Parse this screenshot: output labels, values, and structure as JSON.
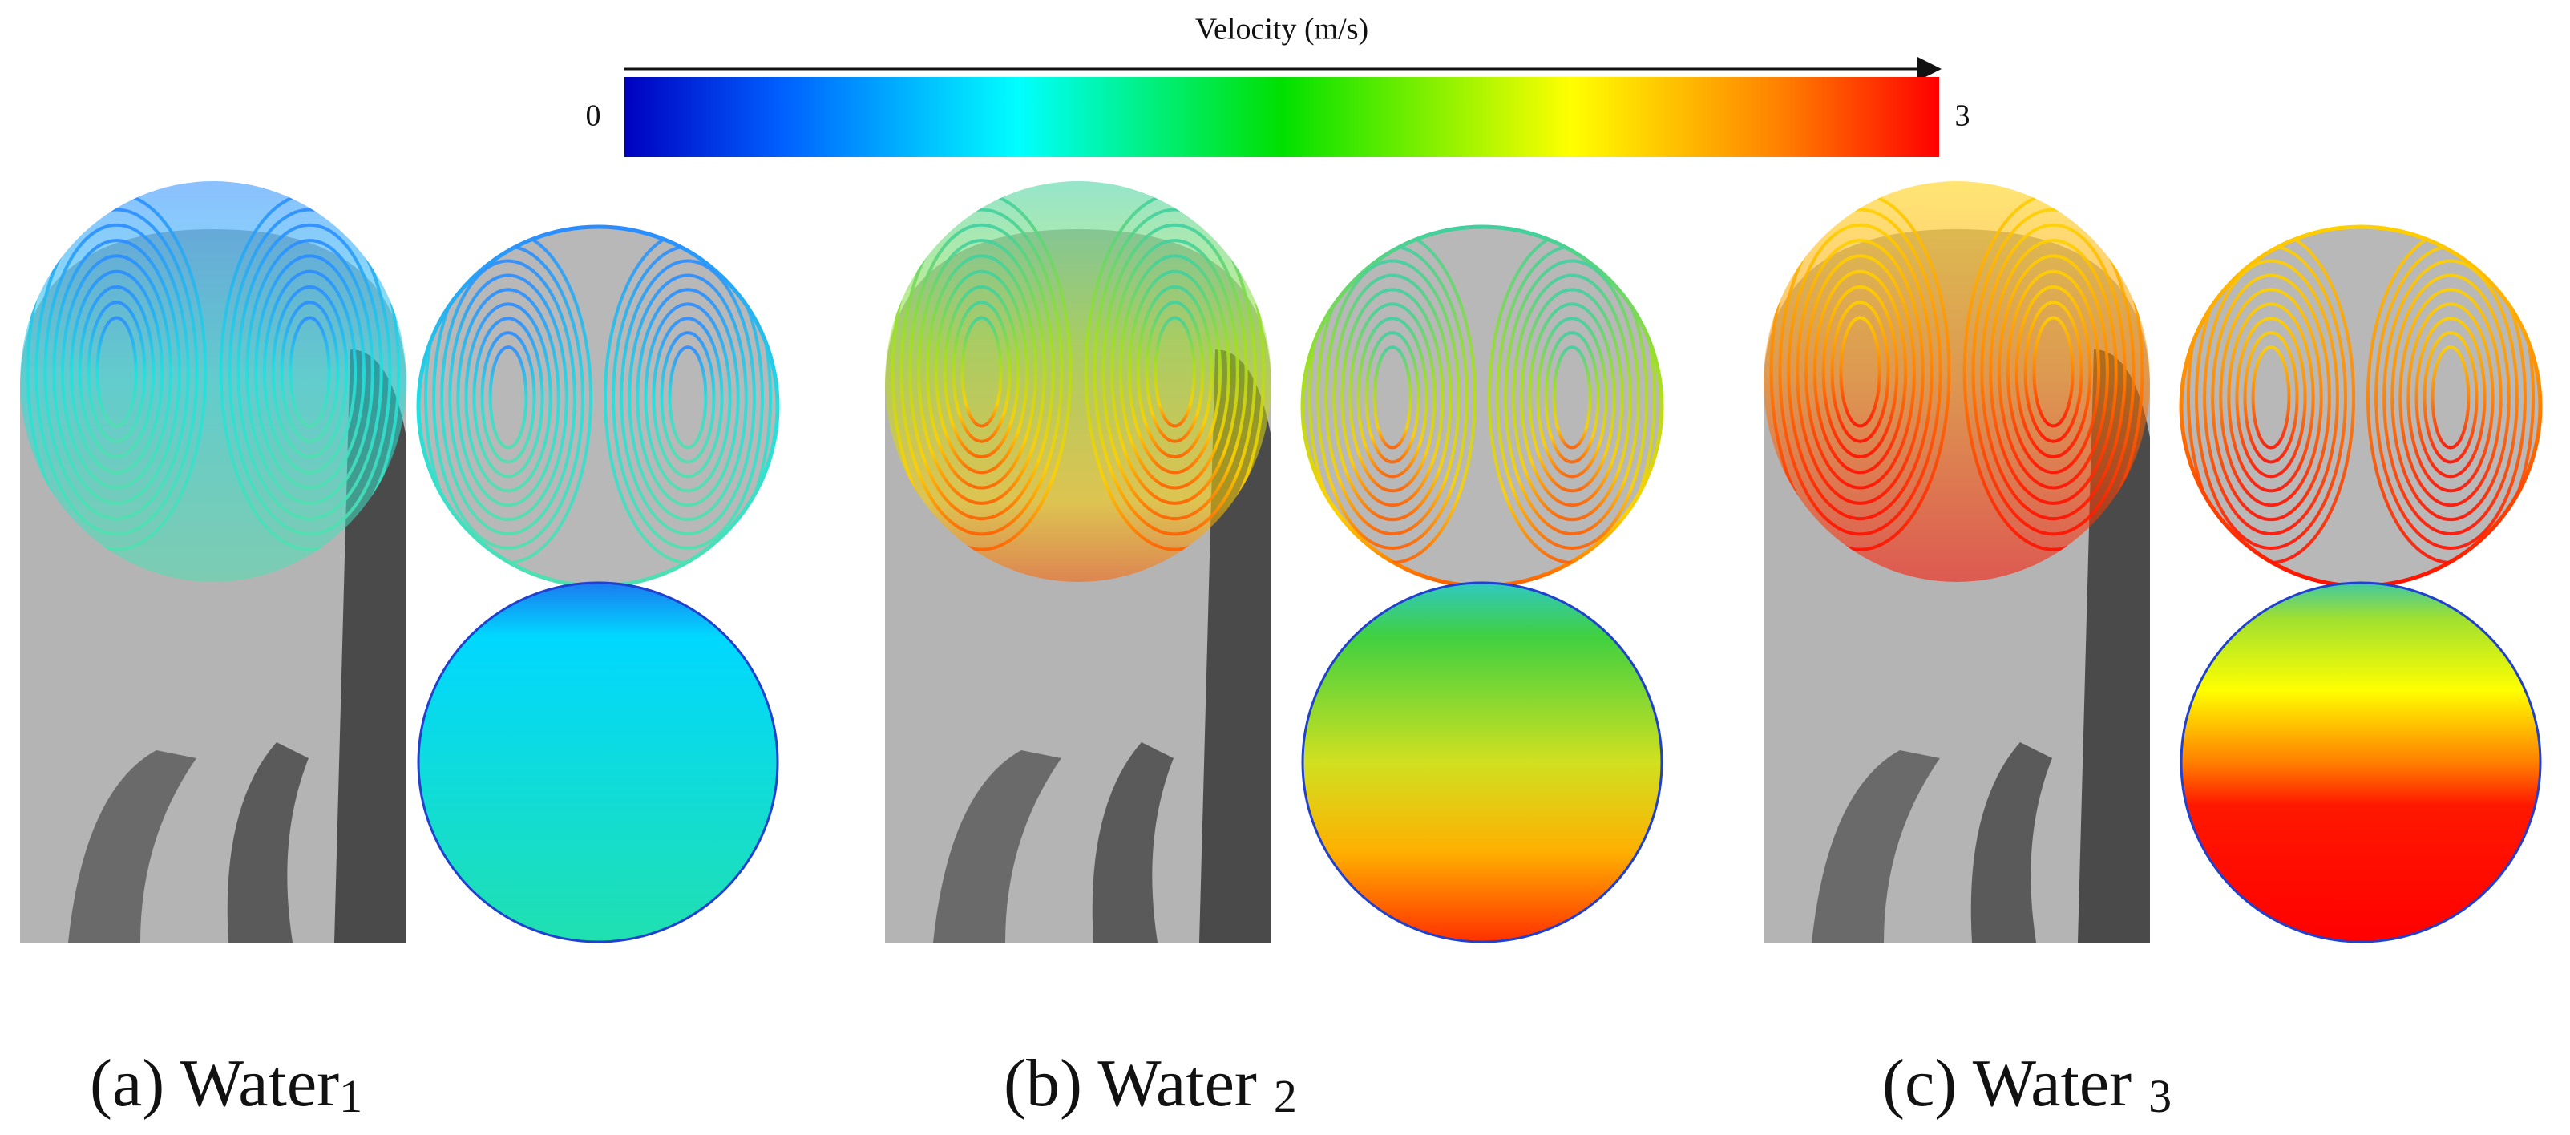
{
  "colorbar": {
    "title": "Velocity (m/s)",
    "min_label": "0",
    "max_label": "3"
  },
  "panels": [
    {
      "label": "(a) Water",
      "subscript": "1"
    },
    {
      "label": "(b) Water ",
      "subscript": "2"
    },
    {
      "label": "(c) Water ",
      "subscript": "3"
    }
  ]
}
